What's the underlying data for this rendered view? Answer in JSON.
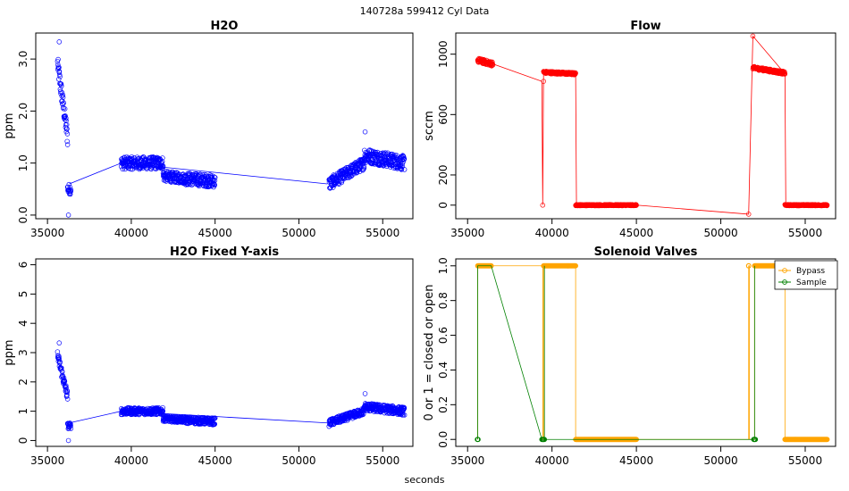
{
  "header": {
    "title": "140728a    599412    Cyl Data",
    "xlabel": "seconds"
  },
  "chart_data": [
    {
      "id": "h2o",
      "type": "scatter",
      "title": "H2O",
      "xlabel": "",
      "ylabel": "ppm",
      "xlim": [
        34300,
        56800
      ],
      "ylim": [
        -0.07,
        3.5
      ],
      "xticks": [
        35000,
        40000,
        45000,
        50000,
        55000
      ],
      "yticks": [
        0.0,
        1.0,
        2.0,
        3.0
      ],
      "ytick_labels": [
        "0.0",
        "1.0",
        "2.0",
        "3.0"
      ],
      "color": "#0000ff",
      "series": [
        {
          "segments": [
            {
              "x": [
                35600,
                36200
              ],
              "base": [
                2.9,
                1.5
              ],
              "noise": 0.18
            },
            {
              "x": [
                36200,
                36400
              ],
              "base": [
                0.5,
                0.5
              ],
              "noise": 0.1
            },
            {
              "x": [
                39400,
                41900
              ],
              "base": [
                1.0,
                1.0
              ],
              "noise": 0.12
            },
            {
              "x": [
                41900,
                43200
              ],
              "base": [
                0.75,
                0.7
              ],
              "noise": 0.1
            },
            {
              "x": [
                43200,
                45000
              ],
              "base": [
                0.7,
                0.65
              ],
              "noise": 0.12
            },
            {
              "x": [
                51800,
                53900
              ],
              "base": [
                0.6,
                1.0
              ],
              "noise": 0.12
            },
            {
              "x": [
                53900,
                56300
              ],
              "base": [
                1.15,
                1.0
              ],
              "noise": 0.14
            }
          ],
          "points": [
            [
              35700,
              3.33
            ],
            [
              36250,
              0.0
            ],
            [
              53950,
              1.6
            ]
          ],
          "links": [
            [
              36300,
              0.6
            ],
            [
              39400,
              1.0
            ],
            [
              45000,
              0.82
            ],
            [
              51700,
              0.6
            ]
          ]
        }
      ]
    },
    {
      "id": "flow",
      "type": "scatter",
      "title": "Flow",
      "xlabel": "",
      "ylabel": "sccm",
      "xlim": [
        34300,
        56800
      ],
      "ylim": [
        -90,
        1140
      ],
      "xticks": [
        35000,
        40000,
        45000,
        50000,
        55000
      ],
      "yticks": [
        0,
        200,
        600,
        1000
      ],
      "ytick_labels": [
        "0",
        "200",
        "600",
        "1000"
      ],
      "color": "#ff0000",
      "series": [
        {
          "segments": [
            {
              "x": [
                35600,
                36500
              ],
              "base": [
                960,
                935
              ],
              "noise": 15
            },
            {
              "x": [
                39500,
                41400
              ],
              "base": [
                880,
                870
              ],
              "noise": 8
            },
            {
              "x": [
                41400,
                45000
              ],
              "base": [
                0,
                0
              ],
              "noise": 4
            },
            {
              "x": [
                51900,
                53800
              ],
              "base": [
                910,
                875
              ],
              "noise": 10
            },
            {
              "x": [
                53800,
                56300
              ],
              "base": [
                0,
                0
              ],
              "noise": 4
            }
          ],
          "points": [
            [
              39450,
              0
            ],
            [
              51650,
              -60
            ],
            [
              51900,
              1120
            ],
            [
              39500,
              820
            ]
          ],
          "links": [
            [
              36500,
              935
            ],
            [
              39400,
              820
            ],
            [
              39450,
              0
            ],
            [
              39500,
              880
            ],
            [
              41400,
              870
            ],
            [
              41450,
              0
            ],
            [
              45000,
              0
            ],
            [
              51650,
              -60
            ],
            [
              51900,
              1120
            ],
            [
              53800,
              870
            ],
            [
              53850,
              0
            ]
          ]
        }
      ]
    },
    {
      "id": "h2o-fixed",
      "type": "scatter",
      "title": "H2O Fixed Y-axis",
      "xlabel": "",
      "ylabel": "ppm",
      "xlim": [
        34300,
        56800
      ],
      "ylim": [
        -0.2,
        6.2
      ],
      "xticks": [
        35000,
        40000,
        45000,
        50000,
        55000
      ],
      "yticks": [
        0,
        1,
        2,
        3,
        4,
        5,
        6
      ],
      "ytick_labels": [
        "0",
        "1",
        "2",
        "3",
        "4",
        "5",
        "6"
      ],
      "color": "#0000ff",
      "series": [
        {
          "segments": [
            {
              "x": [
                35600,
                36200
              ],
              "base": [
                2.9,
                1.5
              ],
              "noise": 0.18
            },
            {
              "x": [
                36200,
                36400
              ],
              "base": [
                0.5,
                0.5
              ],
              "noise": 0.1
            },
            {
              "x": [
                39400,
                41900
              ],
              "base": [
                1.0,
                1.0
              ],
              "noise": 0.12
            },
            {
              "x": [
                41900,
                43200
              ],
              "base": [
                0.75,
                0.7
              ],
              "noise": 0.1
            },
            {
              "x": [
                43200,
                45000
              ],
              "base": [
                0.7,
                0.65
              ],
              "noise": 0.12
            },
            {
              "x": [
                51800,
                53900
              ],
              "base": [
                0.6,
                1.0
              ],
              "noise": 0.12
            },
            {
              "x": [
                53900,
                56300
              ],
              "base": [
                1.15,
                1.0
              ],
              "noise": 0.14
            }
          ],
          "points": [
            [
              35700,
              3.33
            ],
            [
              36250,
              0.0
            ],
            [
              53950,
              1.6
            ]
          ],
          "links": [
            [
              36300,
              0.6
            ],
            [
              39400,
              1.0
            ],
            [
              45000,
              0.82
            ],
            [
              51700,
              0.6
            ]
          ]
        }
      ]
    },
    {
      "id": "valves",
      "type": "line",
      "title": "Solenoid Valves",
      "xlabel": "",
      "ylabel": "0 or 1 = closed or open",
      "xlim": [
        34300,
        56800
      ],
      "ylim": [
        -0.04,
        1.04
      ],
      "xticks": [
        35000,
        40000,
        45000,
        50000,
        55000
      ],
      "yticks": [
        0.0,
        0.2,
        0.4,
        0.6,
        0.8,
        1.0
      ],
      "ytick_labels": [
        "0.0",
        "0.2",
        "0.4",
        "0.6",
        "0.8",
        "1.0"
      ],
      "legend": {
        "placement": "top-right"
      },
      "series": [
        {
          "name": "Bypass",
          "color": "#ffa500",
          "runs": [
            {
              "x": [
                35600,
                36400
              ],
              "y": 1
            },
            {
              "x": [
                39500,
                41400
              ],
              "y": 1
            },
            {
              "x": [
                41400,
                45000
              ],
              "y": 0
            },
            {
              "x": [
                51650,
                51650
              ],
              "y": 1
            },
            {
              "x": [
                52000,
                53800
              ],
              "y": 1
            },
            {
              "x": [
                53800,
                56300
              ],
              "y": 0
            }
          ],
          "path": [
            [
              35600,
              0
            ],
            [
              35600,
              1
            ],
            [
              36400,
              1
            ],
            [
              39450,
              1
            ],
            [
              39450,
              0
            ],
            [
              39500,
              0
            ],
            [
              39500,
              1
            ],
            [
              41400,
              1
            ],
            [
              41400,
              0
            ],
            [
              45000,
              0
            ],
            [
              51650,
              0
            ],
            [
              51650,
              1
            ],
            [
              51700,
              1
            ],
            [
              51700,
              0
            ],
            [
              52000,
              0
            ],
            [
              52000,
              1
            ],
            [
              53800,
              1
            ],
            [
              53800,
              0
            ],
            [
              56300,
              0
            ]
          ]
        },
        {
          "name": "Sample",
          "color": "#008000",
          "runs": [
            {
              "x": [
                35580,
                35620
              ],
              "y": 0
            },
            {
              "x": [
                39400,
                39550
              ],
              "y": 0
            },
            {
              "x": [
                51950,
                52050
              ],
              "y": 0
            }
          ],
          "path": [
            [
              35600,
              0
            ],
            [
              35600,
              1
            ],
            [
              36400,
              1
            ],
            [
              39400,
              0
            ],
            [
              39550,
              0
            ],
            [
              39550,
              1
            ],
            [
              39550,
              0
            ],
            [
              52000,
              0
            ],
            [
              52000,
              1
            ]
          ]
        }
      ]
    }
  ]
}
